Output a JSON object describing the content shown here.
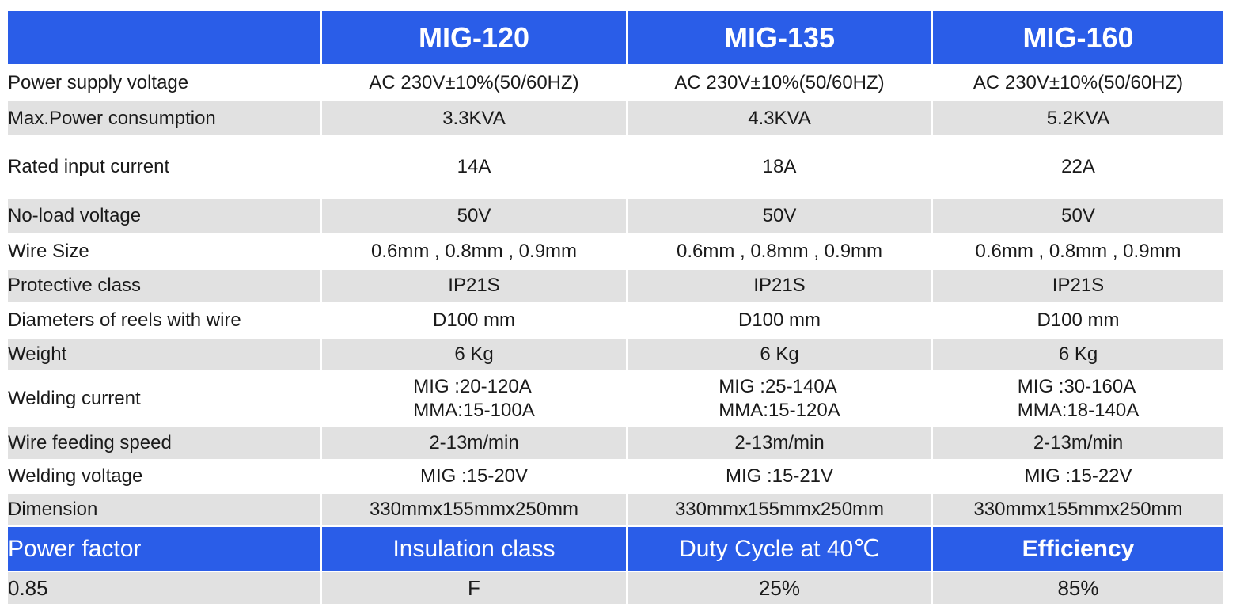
{
  "header": {
    "corner": "",
    "models": [
      "MIG-120",
      "MIG-135",
      "MIG-160"
    ]
  },
  "rows": [
    {
      "label": "Power supply voltage",
      "values": [
        "AC 230V±10%(50/60HZ)",
        "AC 230V±10%(50/60HZ)",
        "AC 230V±10%(50/60HZ)"
      ]
    },
    {
      "label": "Max.Power consumption",
      "values": [
        "3.3KVA",
        "4.3KVA",
        "5.2KVA"
      ]
    },
    {
      "label": "Rated input current",
      "values": [
        "14A",
        "18A",
        "22A"
      ]
    },
    {
      "label": "No-load voltage",
      "values": [
        "50V",
        "50V",
        "50V"
      ]
    },
    {
      "label": "Wire Size",
      "values": [
        "0.6mm , 0.8mm , 0.9mm",
        "0.6mm , 0.8mm , 0.9mm",
        "0.6mm , 0.8mm , 0.9mm"
      ]
    },
    {
      "label": "Protective class",
      "values": [
        "IP21S",
        "IP21S",
        "IP21S"
      ]
    },
    {
      "label": "Diameters of reels with wire",
      "values": [
        "D100 mm",
        "D100 mm",
        "D100 mm"
      ]
    },
    {
      "label": "Weight",
      "values": [
        "6 Kg",
        "6 Kg",
        "6 Kg"
      ]
    },
    {
      "label": "Welding current",
      "values": [
        {
          "mig": "MIG :20-120A",
          "mma": "MMA:15-100A"
        },
        {
          "mig": "MIG :25-140A",
          "mma": "MMA:15-120A"
        },
        {
          "mig": "MIG :30-160A",
          "mma": "MMA:18-140A"
        }
      ]
    },
    {
      "label": "Wire feeding speed",
      "values": [
        "2-13m/min",
        "2-13m/min",
        "2-13m/min"
      ]
    },
    {
      "label": "Welding voltage",
      "values": [
        "MIG :15-20V",
        "MIG :15-21V",
        "MIG :15-22V"
      ]
    },
    {
      "label": "Dimension",
      "values": [
        "330mmx155mmx250mm",
        "330mmx155mmx250mm",
        "330mmx155mmx250mm"
      ]
    }
  ],
  "footer": {
    "headers": [
      "Power factor",
      "Insulation class",
      "Duty Cycle at 40℃",
      "Efficiency"
    ],
    "values": [
      "0.85",
      "F",
      "25%",
      "85%"
    ]
  },
  "colors": {
    "header_blue": "#2a5de8",
    "shade_gray": "#e1e1e1"
  }
}
